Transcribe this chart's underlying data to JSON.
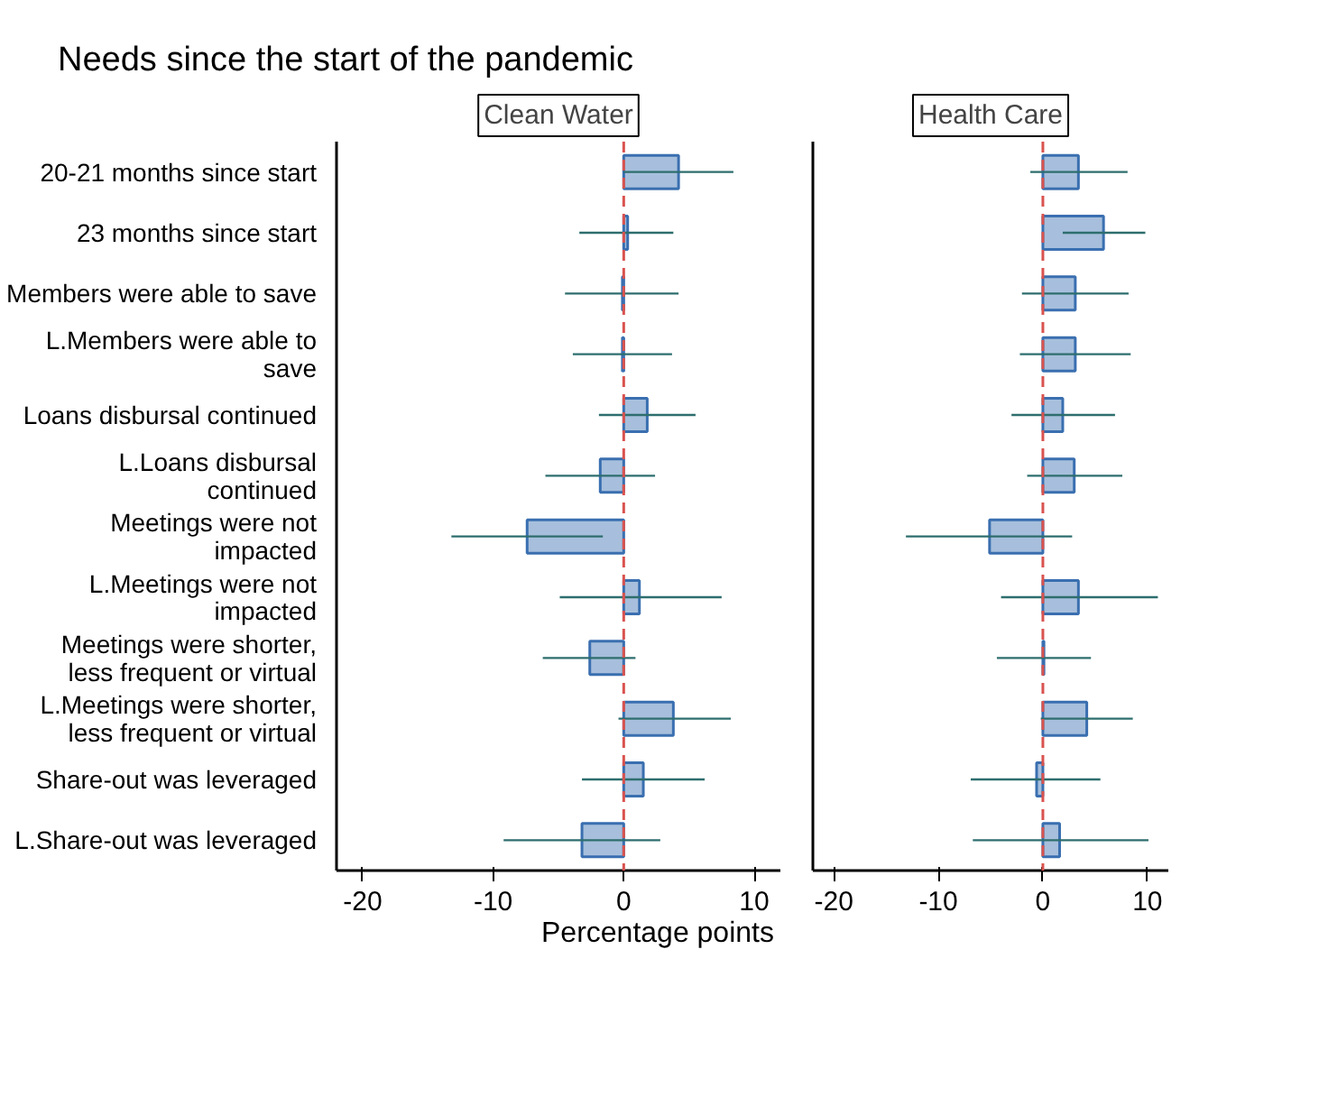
{
  "chart_data": [
    {
      "type": "bar",
      "orientation": "horizontal",
      "title": "Needs since the start of the pandemic",
      "subtitle": "Clean Water",
      "xlabel": "Percentage points",
      "categories": [
        "20-21 months since start",
        "23 months since start",
        "Members were able to save",
        "L.Members were able to save",
        "Loans disbursal continued",
        "L.Loans disbursal continued",
        "Meetings were not impacted",
        "L.Meetings were not impacted",
        "Meetings were shorter, less frequent or virtual",
        "L.Meetings were shorter, less frequent or virtual",
        "Share-out was leveraged",
        "L.Share-out was leveraged"
      ],
      "series": [
        {
          "color": "#a7bfdc",
          "values": [
            4.2,
            0.3,
            -0.1,
            -0.1,
            1.8,
            -1.8,
            -7.4,
            1.2,
            -2.6,
            3.8,
            1.5,
            -3.2
          ],
          "errors": [
            [
              0.0,
              8.4
            ],
            [
              -3.4,
              3.8
            ],
            [
              -4.5,
              4.2
            ],
            [
              -3.9,
              3.7
            ],
            [
              -1.9,
              5.5
            ],
            [
              -6.0,
              2.4
            ],
            [
              -13.2,
              -1.6
            ],
            [
              -4.9,
              7.5
            ],
            [
              -6.2,
              0.9
            ],
            [
              -0.4,
              8.2
            ],
            [
              -3.2,
              6.2
            ],
            [
              -9.2,
              2.8
            ]
          ]
        }
      ],
      "xlim": [
        -22,
        12
      ],
      "xticks": [
        -20,
        -10,
        0,
        10
      ],
      "grid": false,
      "ref_lines": [
        {
          "axis": "x",
          "value": 0,
          "color": "#d9534f",
          "line_style": "dashed"
        }
      ]
    },
    {
      "type": "bar",
      "orientation": "horizontal",
      "subtitle": "Health Care",
      "tick_labels": "x",
      "categories": [
        "20-21 months since start",
        "23 months since start",
        "Members were able to save",
        "L.Members were able to save",
        "Loans disbursal continued",
        "L.Loans disbursal continued",
        "Meetings were not impacted",
        "L.Meetings were not impacted",
        "Meetings were shorter, less frequent or virtual",
        "L.Meetings were shorter, less frequent or virtual",
        "Share-out was leveraged",
        "L.Share-out was leveraged"
      ],
      "series": [
        {
          "color": "#a7bfdc",
          "values": [
            3.4,
            5.8,
            3.1,
            3.1,
            1.9,
            3.0,
            -5.1,
            3.4,
            0.1,
            4.2,
            -0.6,
            1.6
          ],
          "errors": [
            [
              -1.2,
              8.1
            ],
            [
              1.9,
              9.8
            ],
            [
              -2.0,
              8.2
            ],
            [
              -2.2,
              8.4
            ],
            [
              -3.0,
              6.9
            ],
            [
              -1.5,
              7.6
            ],
            [
              -13.1,
              2.8
            ],
            [
              -4.0,
              11.0
            ],
            [
              -4.4,
              4.6
            ],
            [
              -0.2,
              8.6
            ],
            [
              -6.9,
              5.5
            ],
            [
              -6.7,
              10.1
            ]
          ]
        }
      ],
      "xlim": [
        -22,
        12
      ],
      "xticks": [
        -20,
        -10,
        0,
        10
      ],
      "grid": false,
      "ref_lines": [
        {
          "axis": "x",
          "value": 0,
          "color": "#d9534f",
          "line_style": "dashed"
        }
      ]
    }
  ]
}
